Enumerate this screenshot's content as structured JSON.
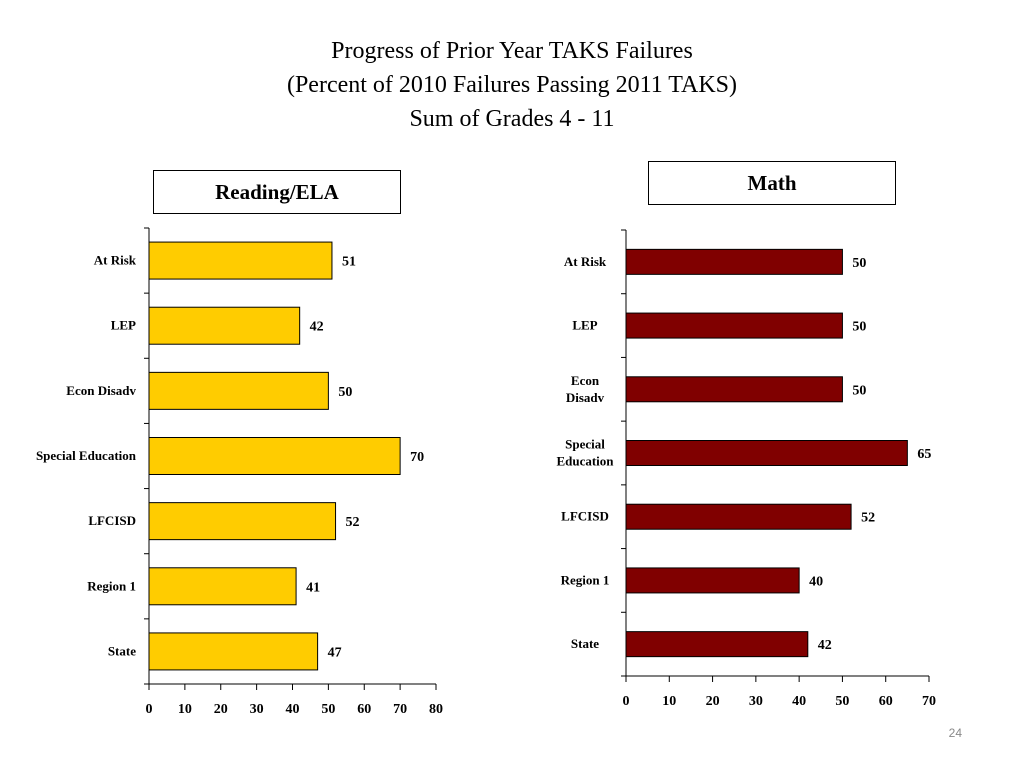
{
  "slide": {
    "title_line1": "Progress of Prior Year TAKS Failures",
    "title_line2": "(Percent of 2010 Failures Passing 2011 TAKS)",
    "title_line3": "Sum of Grades 4 - 11",
    "page_number": "24"
  },
  "chart_data": [
    {
      "type": "bar",
      "orientation": "horizontal",
      "title": "Reading/ELA",
      "categories": [
        [
          "At Risk"
        ],
        [
          "LEP"
        ],
        [
          "Econ Disadv"
        ],
        [
          "Special Education"
        ],
        [
          "LFCISD"
        ],
        [
          "Region 1"
        ],
        [
          "State"
        ]
      ],
      "values": [
        51,
        42,
        50,
        70,
        52,
        41,
        47
      ],
      "xlim": [
        0,
        80
      ],
      "ticks": [
        0,
        10,
        20,
        30,
        40,
        50,
        60,
        70,
        80
      ],
      "bar_color": "#FFCC00",
      "grid": false
    },
    {
      "type": "bar",
      "orientation": "horizontal",
      "title": "Math",
      "categories": [
        [
          "At Risk"
        ],
        [
          "LEP"
        ],
        [
          "Econ",
          "Disadv"
        ],
        [
          "Special",
          "Education"
        ],
        [
          "LFCISD"
        ],
        [
          "Region 1"
        ],
        [
          "State"
        ]
      ],
      "values": [
        50,
        50,
        50,
        65,
        52,
        40,
        42
      ],
      "xlim": [
        0,
        70
      ],
      "ticks": [
        0,
        10,
        20,
        30,
        40,
        50,
        60,
        70
      ],
      "bar_color": "#800000",
      "grid": false
    }
  ]
}
